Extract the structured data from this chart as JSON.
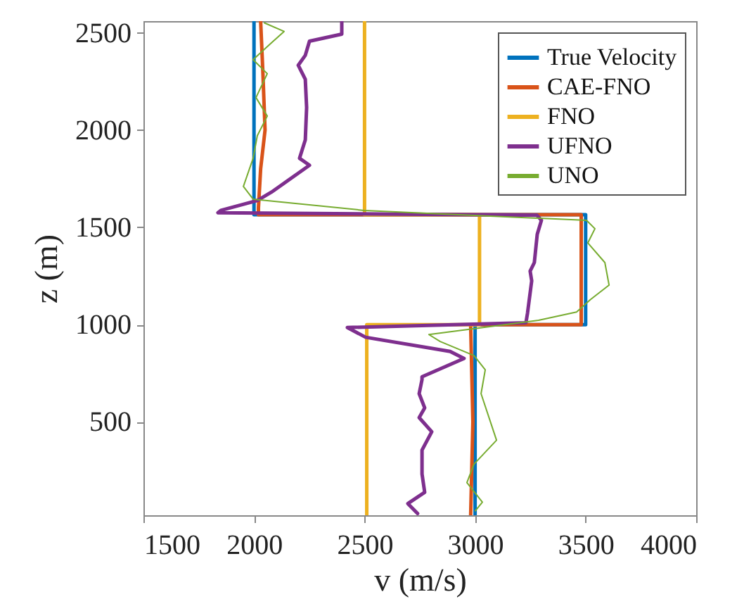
{
  "chart_data": {
    "type": "line",
    "xlabel": "v (m/s)",
    "ylabel": "z (m)",
    "xlim": [
      1500,
      4000
    ],
    "xticks": [
      1500,
      2000,
      2500,
      3000,
      3500,
      4000
    ],
    "ylim": [
      20,
      2560
    ],
    "yticks": [
      500,
      1000,
      1500,
      2000,
      2500
    ],
    "grid": false,
    "legend": "top right",
    "marker": "none",
    "line_style": "solid",
    "series": [
      {
        "name": "True Velocity",
        "color": "#0072bd",
        "x": [
          2000,
          2000,
          3500,
          3500,
          3000,
          3000
        ],
        "values": [
          2560,
          1565,
          1565,
          1000,
          1000,
          20
        ]
      },
      {
        "name": "CAE-FNO",
        "color": "#d95319",
        "x": [
          2030,
          2040,
          2050,
          2030,
          2020,
          2020,
          3480,
          3480,
          2980,
          2990,
          2980
        ],
        "values": [
          2560,
          2300,
          2000,
          1800,
          1600,
          1565,
          1565,
          1000,
          1000,
          500,
          20
        ]
      },
      {
        "name": "FNO",
        "color": "#edb120",
        "x": [
          2500,
          2500,
          3020,
          3020,
          2510,
          2510
        ],
        "values": [
          2560,
          1565,
          1565,
          1000,
          1000,
          20
        ]
      },
      {
        "name": "UFNO",
        "color": "#7e2f8e",
        "x": [
          2397,
          2397,
          2251,
          2232,
          2200,
          2232,
          2238,
          2232,
          2206,
          2251,
          2206,
          2079,
          2015,
          1850,
          1837,
          3280,
          3300,
          3281,
          3268,
          3249,
          3256,
          3237,
          3230,
          2422,
          2505,
          2887,
          2950,
          2760,
          2760,
          2747,
          2772,
          2747,
          2804,
          2760,
          2760,
          2772,
          2696,
          2740
        ],
        "values": [
          2560,
          2493,
          2457,
          2384,
          2333,
          2261,
          2116,
          1949,
          1855,
          1819,
          1783,
          1681,
          1638,
          1587,
          1575,
          1562,
          1536,
          1464,
          1319,
          1275,
          1225,
          1058,
          1010,
          985,
          935,
          862,
          826,
          732,
          717,
          645,
          572,
          522,
          449,
          355,
          232,
          138,
          80,
          29
        ]
      },
      {
        "name": "UNO",
        "color": "#77ac30",
        "x": [
          2047,
          2136,
          2073,
          1996,
          2060,
          2009,
          2060,
          2015,
          1996,
          1952,
          1996,
          2499,
          3504,
          3542,
          3510,
          3587,
          3606,
          3523,
          3459,
          3287,
          2791,
          2842,
          2995,
          3046,
          3027,
          3097,
          2995,
          2963,
          3033,
          3001
        ],
        "values": [
          2551,
          2507,
          2442,
          2362,
          2290,
          2167,
          2072,
          1971,
          1855,
          1710,
          1645,
          1587,
          1536,
          1493,
          1420,
          1319,
          1203,
          1130,
          1065,
          1022,
          949,
          913,
          841,
          768,
          645,
          406,
          283,
          188,
          87,
          43
        ]
      }
    ]
  }
}
